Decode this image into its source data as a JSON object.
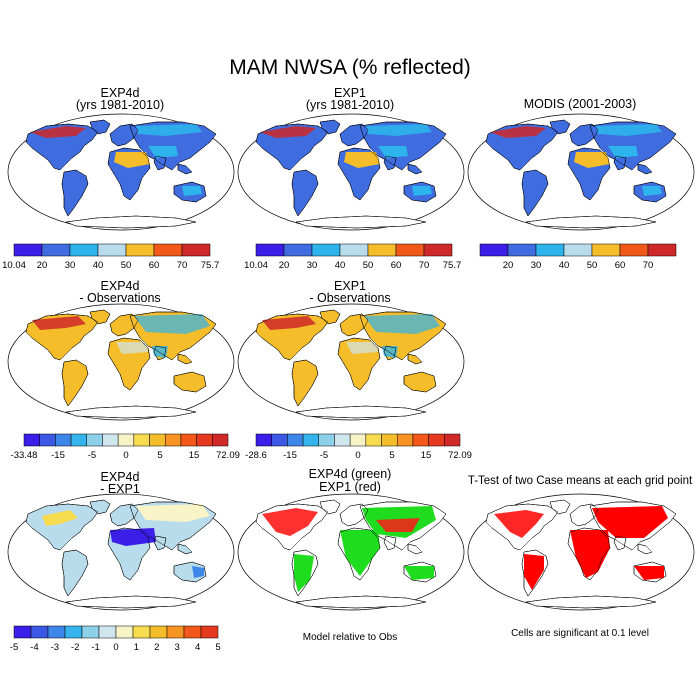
{
  "title": "MAM NWSA (% reflected)",
  "colors": {
    "six": [
      "#3b1fe8",
      "#3f6de0",
      "#2eb4ec",
      "#b8dcec",
      "#f5bd2a",
      "#f2581a",
      "#cf2828"
    ],
    "diff": [
      "#3b1fe8",
      "#3a58e3",
      "#3e86e8",
      "#35b4ec",
      "#8ed0ea",
      "#cfe6ee",
      "#f8f4c8",
      "#f6dc4e",
      "#f5bd2a",
      "#f59323",
      "#f2581a",
      "#e63a1e",
      "#cf2828"
    ],
    "land_low": "#3f6de0",
    "land_mid": "#2eb4ec",
    "orange": "#f5bd2a",
    "red": "#cf2828",
    "green": "#1fdc1f",
    "sig_red": "#ff0000"
  },
  "panels": [
    {
      "id": "exp4d",
      "line1": "EXP4d",
      "line2": "(yrs 1981-2010)",
      "ticks": [
        "10.04",
        "20",
        "30",
        "40",
        "50",
        "60",
        "70",
        "75.7"
      ],
      "scheme": "abs"
    },
    {
      "id": "exp1",
      "line1": "EXP1",
      "line2": "(yrs 1981-2010)",
      "ticks": [
        "10.04",
        "20",
        "30",
        "40",
        "50",
        "60",
        "70",
        "75.7"
      ],
      "scheme": "abs"
    },
    {
      "id": "modis",
      "line1": "MODIS (2001-2003)",
      "line2": "",
      "ticks": [
        "",
        "20",
        "30",
        "40",
        "50",
        "60",
        "70",
        ""
      ],
      "scheme": "abs"
    },
    {
      "id": "exp4d_obs",
      "line1": "EXP4d",
      "line2": "- Observations",
      "ticks": [
        "-33.48",
        "-15",
        "-5",
        "0",
        "5",
        "15",
        "72.09"
      ],
      "scheme": "diff"
    },
    {
      "id": "exp1_obs",
      "line1": "EXP1",
      "line2": "- Observations",
      "ticks": [
        "-28.6",
        "-15",
        "-5",
        "0",
        "5",
        "15",
        "72.09"
      ],
      "scheme": "diff"
    },
    {
      "id": "exp4d_exp1",
      "line1": "EXP4d",
      "line2": "- EXP1",
      "ticks": [
        "-5",
        "-4",
        "-3",
        "-2",
        "-1",
        "0",
        "1",
        "2",
        "3",
        "4",
        "5"
      ],
      "scheme": "diff2"
    },
    {
      "id": "rel",
      "line1": "EXP4d (green)",
      "line2": "EXP1 (red)",
      "note": "Model relative to Obs",
      "scheme": "rel"
    },
    {
      "id": "ttest",
      "line1": "T-Test of two Case means at each grid point",
      "line2": "",
      "note": "Cells are significant at 0.1 level",
      "scheme": "sig"
    }
  ]
}
